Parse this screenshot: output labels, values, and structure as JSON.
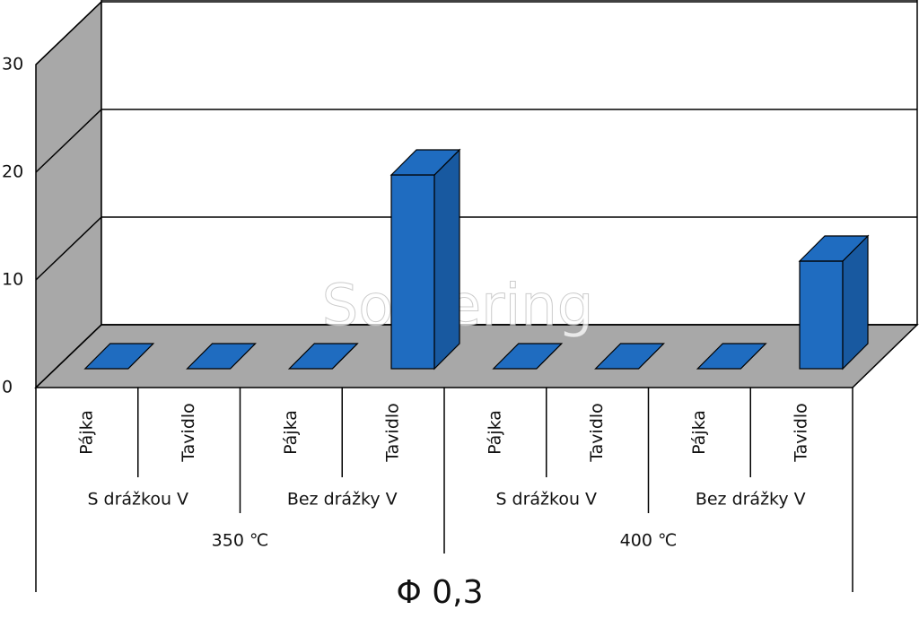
{
  "chart_data": {
    "type": "bar3d",
    "categories": [
      "Pájka",
      "Tavidlo",
      "Pájka",
      "Tavidlo",
      "Pájka",
      "Tavidlo",
      "Pájka",
      "Tavidlo"
    ],
    "subgroups": [
      "S drážkou V",
      "Bez drážky V",
      "S drážkou V",
      "Bez drážky V"
    ],
    "groups": [
      "350 ℃",
      "400 ℃"
    ],
    "values": [
      0,
      0,
      0,
      18,
      0,
      0,
      0,
      10
    ],
    "color": "#1f6cc0",
    "ylim": [
      0,
      30
    ],
    "yticks": [
      0,
      10,
      20,
      30
    ],
    "grid": true,
    "xlabel": "Φ 0,3",
    "watermark": "Soldering"
  }
}
